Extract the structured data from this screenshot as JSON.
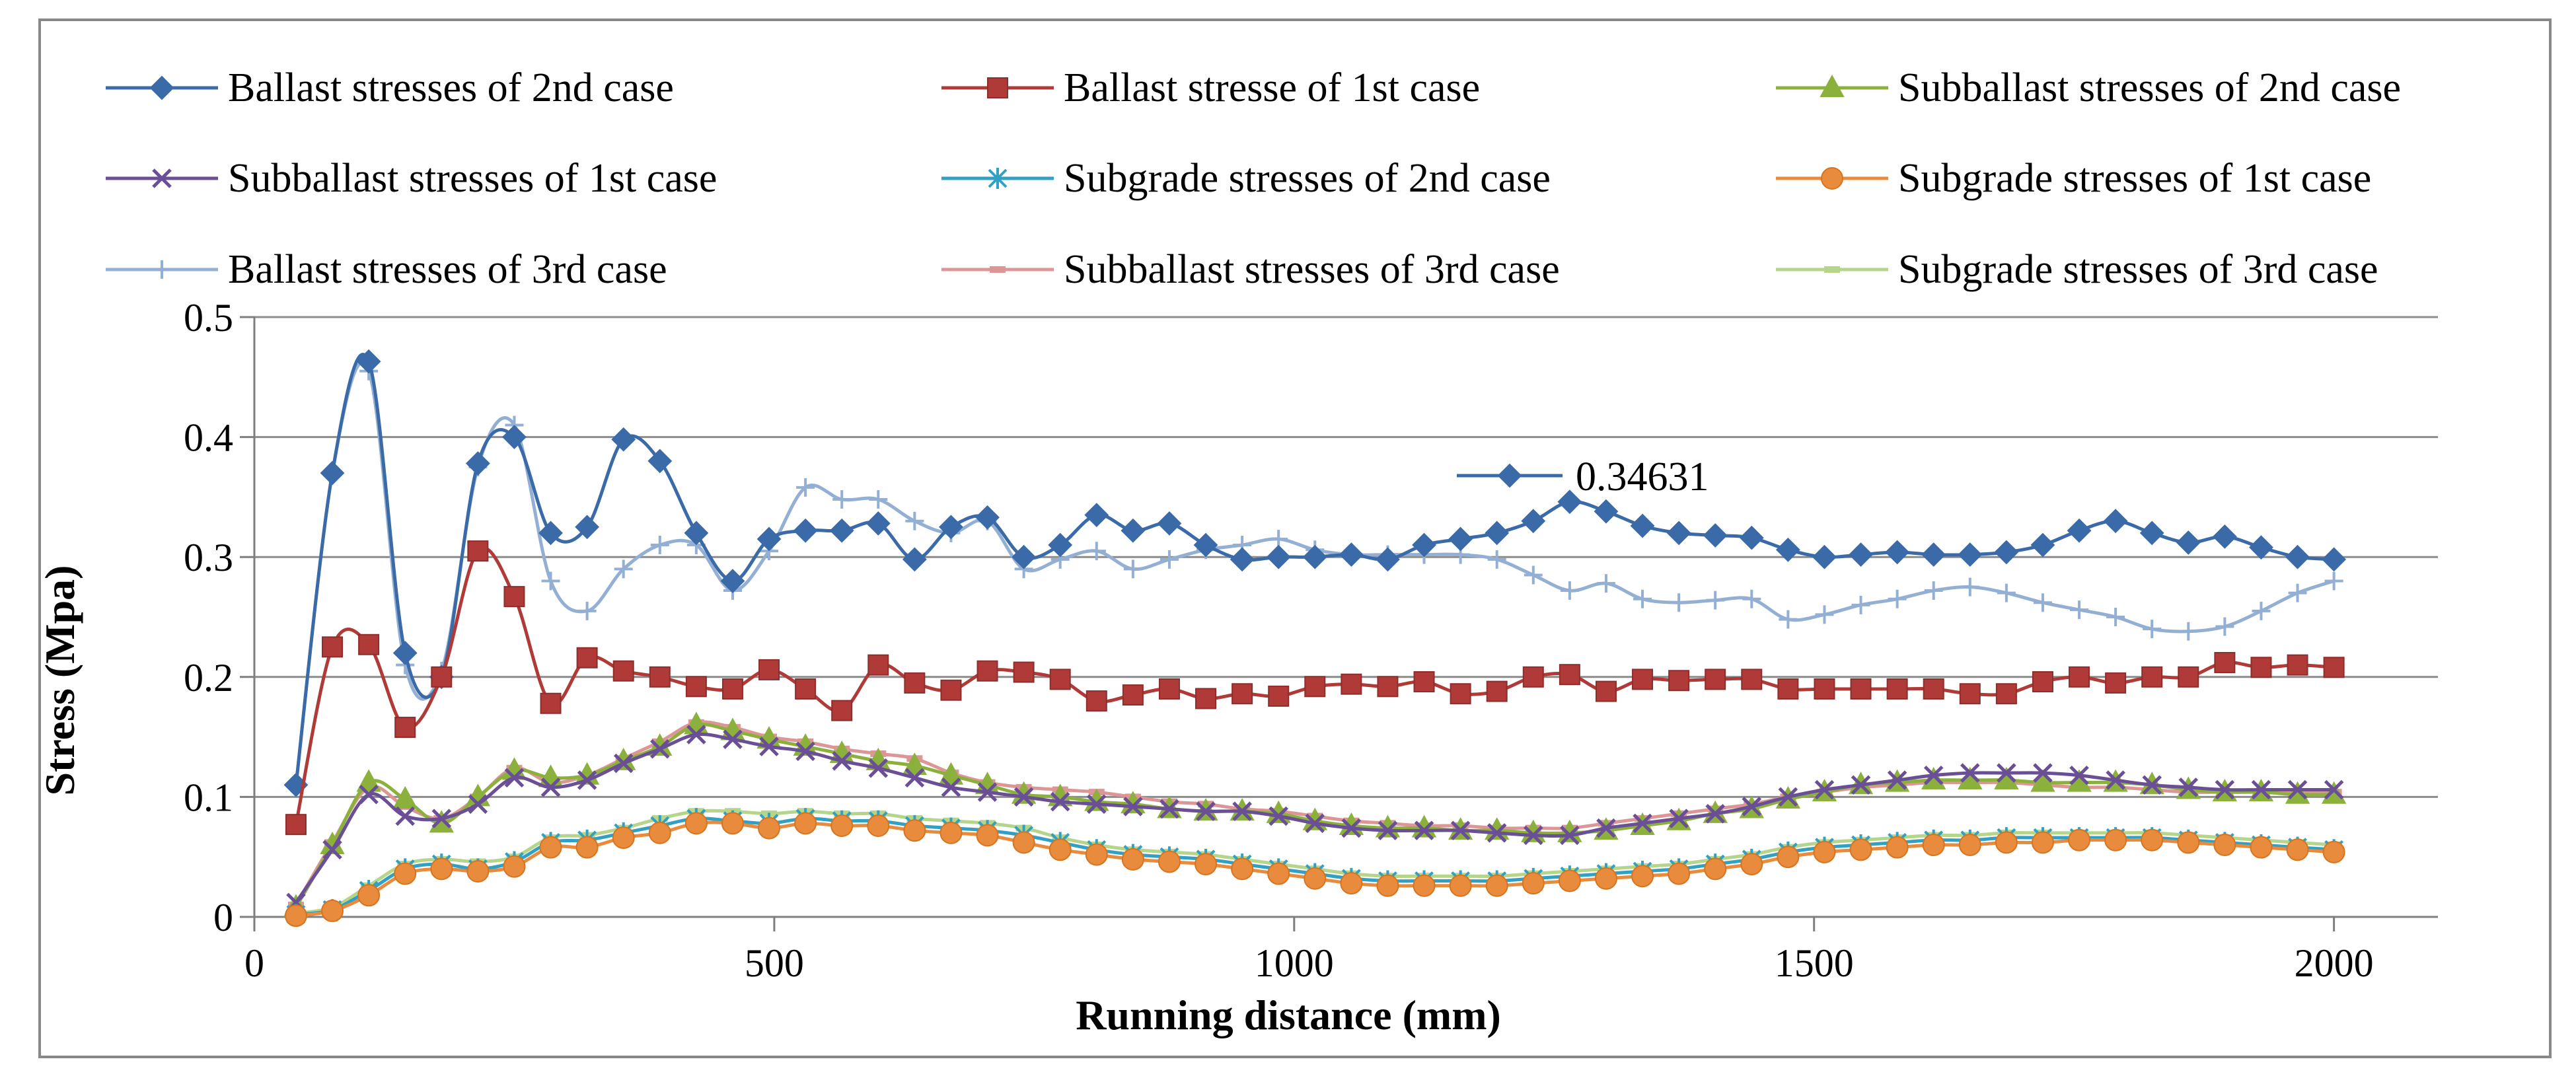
{
  "chart_data": {
    "type": "line",
    "title": "",
    "xlabel": "Running distance (mm)",
    "ylabel": "Stress (Mpa)",
    "xlim": [
      0,
      2100
    ],
    "ylim": [
      0,
      0.5
    ],
    "x_ticks": [
      0,
      500,
      1000,
      1500,
      2000
    ],
    "y_ticks": [
      0,
      0.1,
      0.2,
      0.3,
      0.4,
      0.5
    ],
    "x_tick_labels": [
      "0",
      "500",
      "1000",
      "1500",
      "2000"
    ],
    "y_tick_labels": [
      "0",
      "0.1",
      "0.2",
      "0.3",
      "0.4",
      "0.5"
    ],
    "grid": "horizontal",
    "legend_position": "top",
    "x": [
      40,
      75,
      110,
      145,
      180,
      215,
      250,
      285,
      320,
      355,
      390,
      425,
      460,
      495,
      530,
      565,
      600,
      635,
      670,
      705,
      740,
      775,
      810,
      845,
      880,
      915,
      950,
      985,
      1020,
      1055,
      1090,
      1125,
      1160,
      1195,
      1230,
      1265,
      1300,
      1335,
      1370,
      1405,
      1440,
      1475,
      1510,
      1545,
      1580,
      1615,
      1650,
      1685,
      1720,
      1755,
      1790,
      1825,
      1860,
      1895,
      1930,
      1965,
      2000
    ],
    "series": [
      {
        "name": "Ballast stresses of 2nd case",
        "color": "#3A6AA8",
        "marker": "diamond",
        "values": [
          0.11,
          0.37,
          0.463,
          0.22,
          0.2,
          0.378,
          0.4,
          0.32,
          0.325,
          0.398,
          0.38,
          0.32,
          0.28,
          0.315,
          0.322,
          0.322,
          0.328,
          0.298,
          0.325,
          0.333,
          0.3,
          0.31,
          0.335,
          0.322,
          0.328,
          0.31,
          0.298,
          0.3,
          0.3,
          0.302,
          0.298,
          0.31,
          0.315,
          0.32,
          0.33,
          0.346,
          0.338,
          0.326,
          0.32,
          0.318,
          0.316,
          0.306,
          0.3,
          0.302,
          0.304,
          0.302,
          0.302,
          0.304,
          0.31,
          0.322,
          0.33,
          0.32,
          0.312,
          0.317,
          0.308,
          0.3,
          0.298
        ]
      },
      {
        "name": "Ballast stresse of 1st case",
        "color": "#B03A37",
        "marker": "square",
        "values": [
          0.077,
          0.225,
          0.227,
          0.158,
          0.2,
          0.305,
          0.267,
          0.178,
          0.216,
          0.205,
          0.2,
          0.192,
          0.19,
          0.206,
          0.19,
          0.172,
          0.21,
          0.195,
          0.189,
          0.205,
          0.204,
          0.198,
          0.18,
          0.185,
          0.19,
          0.182,
          0.186,
          0.184,
          0.192,
          0.194,
          0.192,
          0.196,
          0.186,
          0.188,
          0.2,
          0.202,
          0.188,
          0.198,
          0.197,
          0.198,
          0.198,
          0.19,
          0.19,
          0.19,
          0.19,
          0.19,
          0.186,
          0.186,
          0.196,
          0.2,
          0.195,
          0.2,
          0.2,
          0.212,
          0.208,
          0.21,
          0.208
        ]
      },
      {
        "name": "Subballast stresses of 2nd case",
        "color": "#8BB13C",
        "marker": "triangle",
        "values": [
          0.008,
          0.06,
          0.112,
          0.098,
          0.078,
          0.1,
          0.122,
          0.116,
          0.118,
          0.13,
          0.142,
          0.16,
          0.155,
          0.148,
          0.142,
          0.136,
          0.13,
          0.126,
          0.118,
          0.11,
          0.102,
          0.1,
          0.096,
          0.094,
          0.09,
          0.088,
          0.088,
          0.086,
          0.08,
          0.076,
          0.074,
          0.074,
          0.072,
          0.072,
          0.07,
          0.07,
          0.072,
          0.076,
          0.08,
          0.086,
          0.09,
          0.098,
          0.104,
          0.11,
          0.112,
          0.114,
          0.114,
          0.114,
          0.112,
          0.112,
          0.112,
          0.11,
          0.106,
          0.104,
          0.104,
          0.102,
          0.102
        ]
      },
      {
        "name": "Subballast stresses of 1st case",
        "color": "#6A4F96",
        "marker": "x",
        "values": [
          0.012,
          0.056,
          0.102,
          0.084,
          0.082,
          0.094,
          0.116,
          0.108,
          0.114,
          0.128,
          0.14,
          0.152,
          0.148,
          0.142,
          0.138,
          0.13,
          0.124,
          0.116,
          0.108,
          0.104,
          0.1,
          0.096,
          0.094,
          0.092,
          0.09,
          0.088,
          0.088,
          0.084,
          0.078,
          0.074,
          0.072,
          0.072,
          0.072,
          0.07,
          0.068,
          0.068,
          0.074,
          0.078,
          0.082,
          0.086,
          0.092,
          0.1,
          0.106,
          0.11,
          0.114,
          0.118,
          0.12,
          0.12,
          0.12,
          0.118,
          0.114,
          0.11,
          0.108,
          0.106,
          0.106,
          0.106,
          0.106
        ]
      },
      {
        "name": "Subgrade stresses of 2nd case",
        "color": "#32A0C2",
        "marker": "asterisk",
        "values": [
          0.002,
          0.006,
          0.022,
          0.04,
          0.044,
          0.04,
          0.046,
          0.062,
          0.064,
          0.07,
          0.076,
          0.082,
          0.08,
          0.078,
          0.082,
          0.08,
          0.08,
          0.076,
          0.074,
          0.072,
          0.068,
          0.062,
          0.056,
          0.052,
          0.05,
          0.048,
          0.044,
          0.04,
          0.036,
          0.032,
          0.03,
          0.03,
          0.03,
          0.03,
          0.032,
          0.034,
          0.036,
          0.038,
          0.04,
          0.044,
          0.048,
          0.054,
          0.058,
          0.06,
          0.062,
          0.064,
          0.064,
          0.066,
          0.066,
          0.066,
          0.066,
          0.066,
          0.064,
          0.062,
          0.06,
          0.058,
          0.056
        ]
      },
      {
        "name": "Subgrade stresses of 1st case",
        "color": "#E88B3C",
        "marker": "circle",
        "values": [
          0.001,
          0.005,
          0.018,
          0.036,
          0.04,
          0.038,
          0.042,
          0.058,
          0.058,
          0.066,
          0.07,
          0.078,
          0.078,
          0.074,
          0.078,
          0.076,
          0.076,
          0.072,
          0.07,
          0.068,
          0.062,
          0.056,
          0.052,
          0.048,
          0.046,
          0.044,
          0.04,
          0.036,
          0.032,
          0.028,
          0.026,
          0.026,
          0.026,
          0.026,
          0.028,
          0.03,
          0.032,
          0.034,
          0.036,
          0.04,
          0.044,
          0.05,
          0.054,
          0.056,
          0.058,
          0.06,
          0.06,
          0.062,
          0.062,
          0.064,
          0.064,
          0.064,
          0.062,
          0.06,
          0.058,
          0.056,
          0.054
        ]
      },
      {
        "name": "Ballast stresses of 3rd case",
        "color": "#93AFD3",
        "marker": "plus",
        "values": [
          0.11,
          0.37,
          0.455,
          0.21,
          0.205,
          0.375,
          0.41,
          0.28,
          0.255,
          0.29,
          0.31,
          0.31,
          0.272,
          0.305,
          0.358,
          0.348,
          0.348,
          0.33,
          0.32,
          0.33,
          0.29,
          0.298,
          0.305,
          0.29,
          0.298,
          0.306,
          0.31,
          0.315,
          0.306,
          0.302,
          0.302,
          0.302,
          0.302,
          0.298,
          0.285,
          0.272,
          0.278,
          0.265,
          0.262,
          0.264,
          0.265,
          0.248,
          0.252,
          0.26,
          0.265,
          0.272,
          0.275,
          0.27,
          0.262,
          0.256,
          0.25,
          0.24,
          0.238,
          0.242,
          0.255,
          0.27,
          0.28
        ]
      },
      {
        "name": "Subballast stresses of 3rd case",
        "color": "#DC9696",
        "marker": "dash",
        "values": [
          0.01,
          0.062,
          0.108,
          0.092,
          0.082,
          0.1,
          0.124,
          0.112,
          0.118,
          0.132,
          0.146,
          0.162,
          0.158,
          0.15,
          0.146,
          0.14,
          0.136,
          0.132,
          0.12,
          0.112,
          0.108,
          0.106,
          0.104,
          0.1,
          0.096,
          0.094,
          0.09,
          0.088,
          0.084,
          0.08,
          0.078,
          0.076,
          0.076,
          0.074,
          0.074,
          0.074,
          0.078,
          0.082,
          0.086,
          0.09,
          0.094,
          0.1,
          0.104,
          0.108,
          0.11,
          0.112,
          0.112,
          0.112,
          0.11,
          0.108,
          0.108,
          0.106,
          0.104,
          0.104,
          0.104,
          0.104,
          0.104
        ]
      },
      {
        "name": "Subgrade stresses of 3rd case",
        "color": "#B5D58A",
        "marker": "dash",
        "values": [
          0.003,
          0.008,
          0.026,
          0.044,
          0.048,
          0.046,
          0.05,
          0.066,
          0.068,
          0.074,
          0.082,
          0.088,
          0.088,
          0.086,
          0.088,
          0.086,
          0.086,
          0.082,
          0.08,
          0.078,
          0.074,
          0.066,
          0.06,
          0.056,
          0.054,
          0.052,
          0.048,
          0.044,
          0.04,
          0.036,
          0.034,
          0.034,
          0.034,
          0.034,
          0.036,
          0.038,
          0.04,
          0.042,
          0.044,
          0.048,
          0.052,
          0.058,
          0.062,
          0.064,
          0.066,
          0.068,
          0.068,
          0.07,
          0.07,
          0.07,
          0.07,
          0.07,
          0.068,
          0.066,
          0.064,
          0.062,
          0.06
        ]
      }
    ],
    "annotations": [
      {
        "text": "0.34631",
        "series": "Ballast stresses of 2nd case",
        "x": 1265,
        "y": 0.34631
      }
    ]
  }
}
